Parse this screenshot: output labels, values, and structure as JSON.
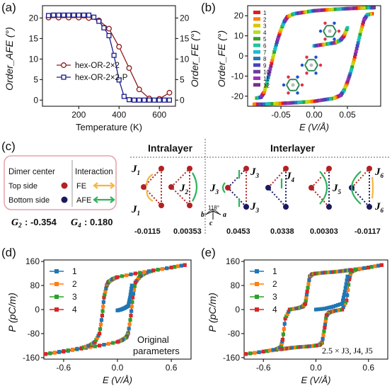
{
  "panels": {
    "a": {
      "letter": "(a)"
    },
    "b": {
      "letter": "(b)"
    },
    "c": {
      "letter": "(c)",
      "legend": {
        "col1": "Dimer center",
        "col2": "Interaction",
        "top": "Top side",
        "bottom": "Bottom side",
        "fe": "FE",
        "afe": "AFE",
        "g2_label": "G",
        "g2_sub": "2",
        "g2_value": ": -0.354",
        "g4_label": "G",
        "g4_sub": "4",
        "g4_value": ": 0.180"
      },
      "intralayer": "Intralayer",
      "interlayer": "Interlayer",
      "angle": "118°",
      "axes": {
        "a": "a",
        "b": "b",
        "c": "c"
      },
      "j_labels": {
        "j1": "J",
        "j2": "J",
        "j3": "J",
        "j4": "J",
        "j5": "J",
        "j6": "J",
        "s1": "1",
        "s2": "2",
        "s3": "3",
        "s4": "4",
        "s5": "5",
        "s6": "6"
      },
      "values": [
        "-0.0115",
        "0.00353",
        "0.0453",
        "0.0338",
        "0.00303",
        "-0.0117"
      ]
    },
    "d": {
      "letter": "(d)",
      "note_line1": "Original",
      "note_line2": "parameters"
    },
    "e": {
      "letter": "(e)",
      "note": "2.5 × J3, J4, J5"
    }
  },
  "colors": {
    "afe": "#8b1a1a",
    "fe": "#1a1a8b",
    "top_dot": "#b22222",
    "bottom_dot": "#1a1a5e",
    "fe_arrow": "#f5b640",
    "afe_arrow": "#2fb35a",
    "c1": "#1f77b4",
    "c2": "#ff7f0e",
    "c3": "#2ca02c",
    "c4": "#d62728"
  },
  "chart_data": [
    {
      "panel": "a",
      "type": "line",
      "xlabel": "Temperature (K)",
      "ylabel_left": "Order_AFE (°)",
      "ylabel_right": "Order_FE (°)",
      "xlim": [
        20,
        680
      ],
      "ylim_left": [
        -1.5,
        23
      ],
      "ylim_right": [
        -1.5,
        23
      ],
      "xticks": [
        200,
        400,
        600
      ],
      "yticks_left": [
        0,
        5,
        10,
        15,
        20
      ],
      "yticks_right": [
        0,
        5,
        10,
        15,
        20
      ],
      "legend_position": "center-right",
      "series": [
        {
          "name": "hex-OR-2×2",
          "axis": "left",
          "marker": "circle",
          "x": [
            50,
            100,
            150,
            200,
            250,
            300,
            350,
            400,
            450,
            500,
            550,
            600,
            650
          ],
          "y": [
            20.1,
            20.1,
            20.1,
            20.1,
            20.0,
            19.4,
            17.4,
            13.0,
            7.8,
            2.6,
            0.4,
            0.3,
            1.8
          ]
        },
        {
          "name": "hex-OR-2×2-P",
          "axis": "right",
          "marker": "square",
          "x": [
            50,
            75,
            100,
            125,
            150,
            175,
            200,
            225,
            250,
            275,
            300,
            325,
            350,
            375,
            400,
            425,
            450,
            475,
            500,
            525,
            550,
            575,
            600,
            625,
            650
          ],
          "y": [
            20.6,
            20.7,
            20.7,
            20.7,
            20.7,
            20.7,
            20.7,
            20.7,
            20.7,
            20.2,
            19.2,
            17.6,
            15.7,
            10.9,
            4.9,
            0.9,
            0.1,
            0.0,
            0.0,
            0.0,
            0.0,
            0.0,
            0.0,
            0.0,
            0.0
          ]
        }
      ]
    },
    {
      "panel": "b",
      "type": "line",
      "xlabel": "E (V/Å)",
      "ylabel": "Order_FE (°)",
      "xlim": [
        -0.1,
        0.1
      ],
      "ylim": [
        -25,
        25
      ],
      "xticks": [
        -0.05,
        0.0,
        0.05
      ],
      "xtick_labels": [
        "-0.05",
        "0.00",
        "0.05"
      ],
      "yticks": [
        -20,
        -10,
        0,
        10,
        20
      ],
      "legend_position": "top-left",
      "legend_entries": [
        "1",
        "2",
        "3",
        "4",
        "5",
        "6",
        "7",
        "8",
        "9",
        "10",
        "11",
        "12"
      ],
      "series_colors": [
        "#e41a1c",
        "#ff7f00",
        "#d4c800",
        "#b2df28",
        "#33a02c",
        "#1fc2a0",
        "#17becf",
        "#1f78b4",
        "#4a3fbf",
        "#6a3d9a",
        "#9e2fc0",
        "#7b2c8f"
      ],
      "upper_branch": {
        "x": [
          -0.087,
          -0.08,
          -0.075,
          -0.07,
          -0.065,
          -0.06,
          -0.055,
          -0.05,
          -0.045,
          -0.04,
          -0.03,
          -0.02,
          -0.01,
          0.0,
          0.02,
          0.04,
          0.06,
          0.08,
          0.09
        ],
        "y": [
          -21,
          -20.5,
          -18,
          -12,
          -5,
          2,
          8,
          13,
          17,
          19.5,
          21,
          21.5,
          22,
          22.5,
          23,
          23.4,
          23.7,
          24,
          24
        ]
      },
      "lower_branch": {
        "x": [
          0.087,
          0.08,
          0.075,
          0.07,
          0.065,
          0.06,
          0.055,
          0.05,
          0.045,
          0.04,
          0.03,
          0.02,
          0.0,
          -0.02,
          -0.04,
          -0.06,
          -0.08,
          -0.09
        ],
        "y": [
          21,
          20.5,
          18,
          12,
          5,
          -2,
          -8,
          -13,
          -17,
          -19.5,
          -21,
          -21.5,
          -22.5,
          -23,
          -23.4,
          -23.7,
          -24,
          -24
        ]
      },
      "initial_branch": {
        "x": [
          0.0,
          0.01,
          0.02,
          0.03,
          0.035,
          0.04,
          0.045,
          0.05
        ],
        "y": [
          5,
          5.5,
          6,
          6.5,
          7,
          8,
          10,
          14
        ]
      }
    },
    {
      "panel": "d",
      "type": "line",
      "xlabel": "E (V/Å)",
      "ylabel": "P (pC/m)",
      "xlim": [
        -0.82,
        0.82
      ],
      "ylim": [
        -165,
        165
      ],
      "xticks": [
        -0.6,
        0.0,
        0.6
      ],
      "xtick_labels": [
        "-0.6",
        "0.0",
        "0.6"
      ],
      "yticks": [
        -160,
        -80,
        0,
        80,
        160
      ],
      "legend_position": "top-left",
      "series": [
        {
          "name": "1",
          "color": "#1f77b4"
        },
        {
          "name": "2",
          "color": "#ff7f0e"
        },
        {
          "name": "3",
          "color": "#2ca02c"
        },
        {
          "name": "4",
          "color": "#d62728"
        }
      ],
      "upper_branch": {
        "x": [
          -0.8,
          -0.6,
          -0.4,
          -0.3,
          -0.25,
          -0.2,
          -0.17,
          -0.15,
          -0.12,
          -0.1,
          -0.05,
          0.0,
          0.2,
          0.4,
          0.6,
          0.75
        ],
        "y": [
          -148,
          -138,
          -128,
          -118,
          -108,
          -80,
          -20,
          40,
          80,
          92,
          102,
          108,
          120,
          130,
          140,
          148
        ]
      },
      "lower_branch": {
        "x": [
          0.75,
          0.6,
          0.4,
          0.3,
          0.25,
          0.2,
          0.17,
          0.15,
          0.12,
          0.1,
          0.05,
          0.0,
          -0.2,
          -0.4,
          -0.6,
          -0.8
        ],
        "y": [
          148,
          140,
          130,
          120,
          110,
          90,
          40,
          -20,
          -78,
          -92,
          -102,
          -108,
          -120,
          -130,
          -140,
          -148
        ]
      },
      "initial_branch": {
        "x": [
          0.0,
          0.04,
          0.08,
          0.12,
          0.14,
          0.16
        ],
        "y": [
          -3,
          0,
          5,
          12,
          40,
          80
        ]
      }
    },
    {
      "panel": "e",
      "type": "line",
      "xlabel": "E (V/Å)",
      "ylabel": "P (pC/m)",
      "xlim": [
        -0.82,
        0.82
      ],
      "ylim": [
        -165,
        165
      ],
      "xticks": [
        -0.6,
        0.0,
        0.6
      ],
      "xtick_labels": [
        "-0.6",
        "0.0",
        "0.6"
      ],
      "yticks": [
        -160,
        -80,
        0,
        80,
        160
      ],
      "legend_position": "top-left",
      "series": [
        {
          "name": "1",
          "color": "#1f77b4"
        },
        {
          "name": "2",
          "color": "#ff7f0e"
        },
        {
          "name": "3",
          "color": "#2ca02c"
        },
        {
          "name": "4",
          "color": "#d62728"
        }
      ],
      "upper_branch": {
        "x": [
          -0.8,
          -0.6,
          -0.45,
          -0.4,
          -0.38,
          -0.35,
          -0.3,
          -0.2,
          -0.15,
          -0.12,
          -0.1,
          -0.07,
          -0.04,
          0.0,
          0.1,
          0.2,
          0.3,
          0.35,
          0.4,
          0.6,
          0.75
        ],
        "y": [
          -148,
          -140,
          -132,
          -125,
          -100,
          -30,
          0,
          5,
          10,
          20,
          60,
          110,
          118,
          120,
          123,
          125,
          128,
          130,
          132,
          140,
          148
        ]
      },
      "lower_branch": {
        "x": [
          0.75,
          0.6,
          0.45,
          0.4,
          0.38,
          0.35,
          0.3,
          0.2,
          0.15,
          0.12,
          0.1,
          0.07,
          0.04,
          0.0,
          -0.1,
          -0.2,
          -0.3,
          -0.35,
          -0.4,
          -0.6,
          -0.8
        ],
        "y": [
          148,
          140,
          132,
          125,
          100,
          30,
          0,
          -5,
          -10,
          -20,
          -60,
          -110,
          -118,
          -120,
          -123,
          -125,
          -128,
          -130,
          -132,
          -140,
          -148
        ]
      },
      "initial_branch": {
        "x": [
          0.0,
          0.1,
          0.2,
          0.3,
          0.33,
          0.36
        ],
        "y": [
          0,
          3,
          10,
          20,
          60,
          110
        ]
      }
    }
  ]
}
